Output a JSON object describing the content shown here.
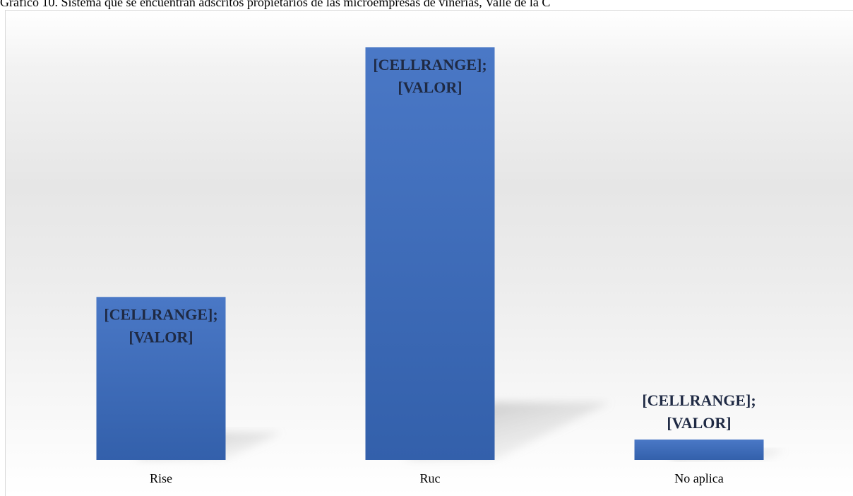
{
  "caption": "Gráfico 10. Sistema que se encuentran adscritos propietarios de las microempresas de vinerías, Valle de la C",
  "chart_data": {
    "type": "bar",
    "categories": [
      "Rise",
      "Ruc",
      "No aplica"
    ],
    "values": [
      32,
      81,
      4
    ],
    "ylim": [
      0,
      85
    ],
    "data_labels": [
      [
        "[CELLRANGE];",
        "[VALOR]"
      ],
      [
        "[CELLRANGE];",
        "[VALOR]"
      ],
      [
        "[CELLRANGE];",
        "[VALOR]"
      ]
    ],
    "bar_color": "#4472c4",
    "grid": false,
    "legend": "none"
  }
}
